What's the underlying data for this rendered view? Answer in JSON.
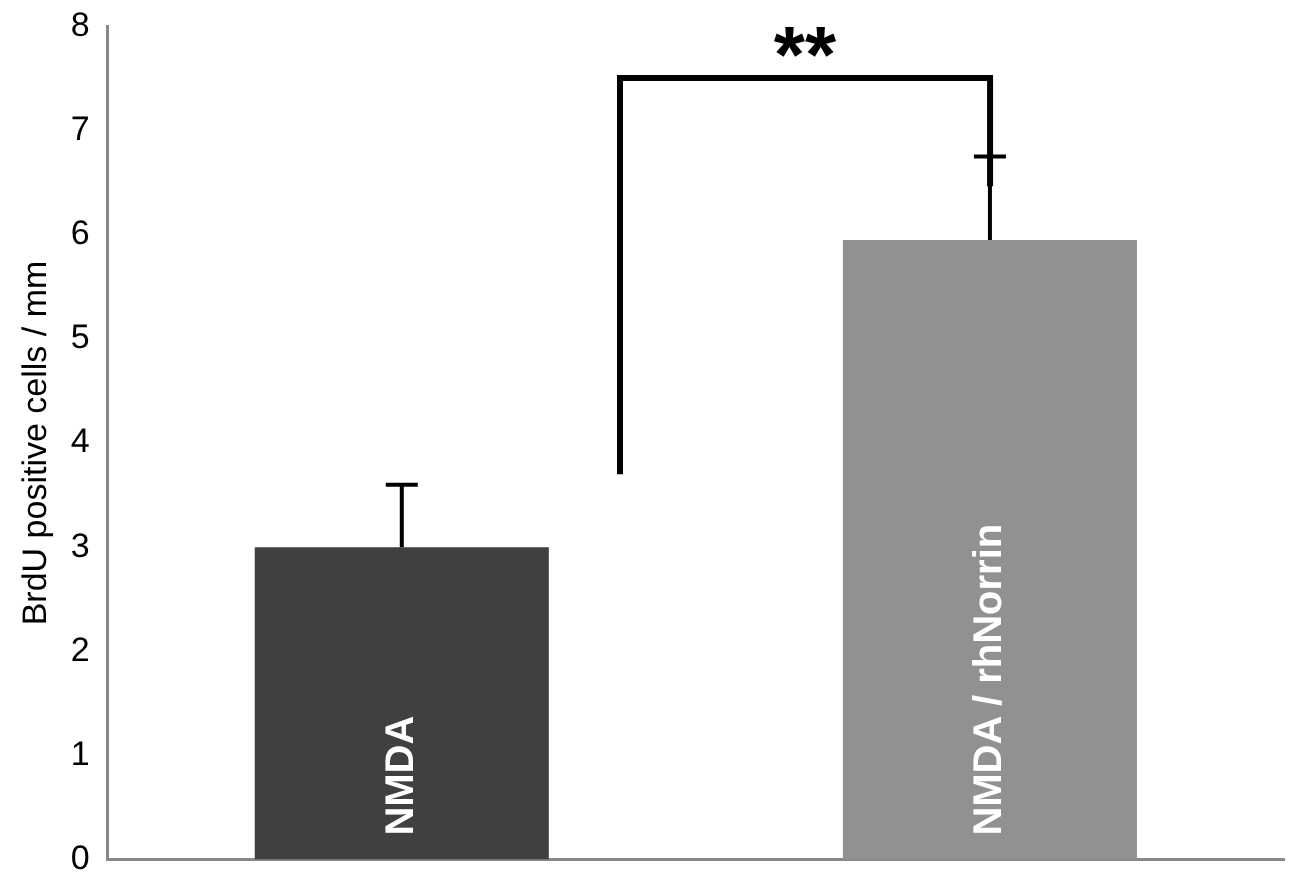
{
  "chart_data": {
    "type": "bar",
    "ylabel": "BrdU positive cells / mm",
    "categories": [
      "NMDA",
      "NMDA / rhNorrin"
    ],
    "values": [
      3.0,
      5.95
    ],
    "colors": [
      "#404040",
      "#919191"
    ],
    "errors": [
      [
        3.0,
        3.6
      ],
      [
        5.95,
        6.75
      ]
    ],
    "ylim": [
      0,
      8
    ],
    "yticks": [
      0,
      1,
      2,
      3,
      4,
      5,
      6,
      7,
      8
    ],
    "grid": false,
    "legend": false,
    "annotations": [
      "**"
    ]
  }
}
